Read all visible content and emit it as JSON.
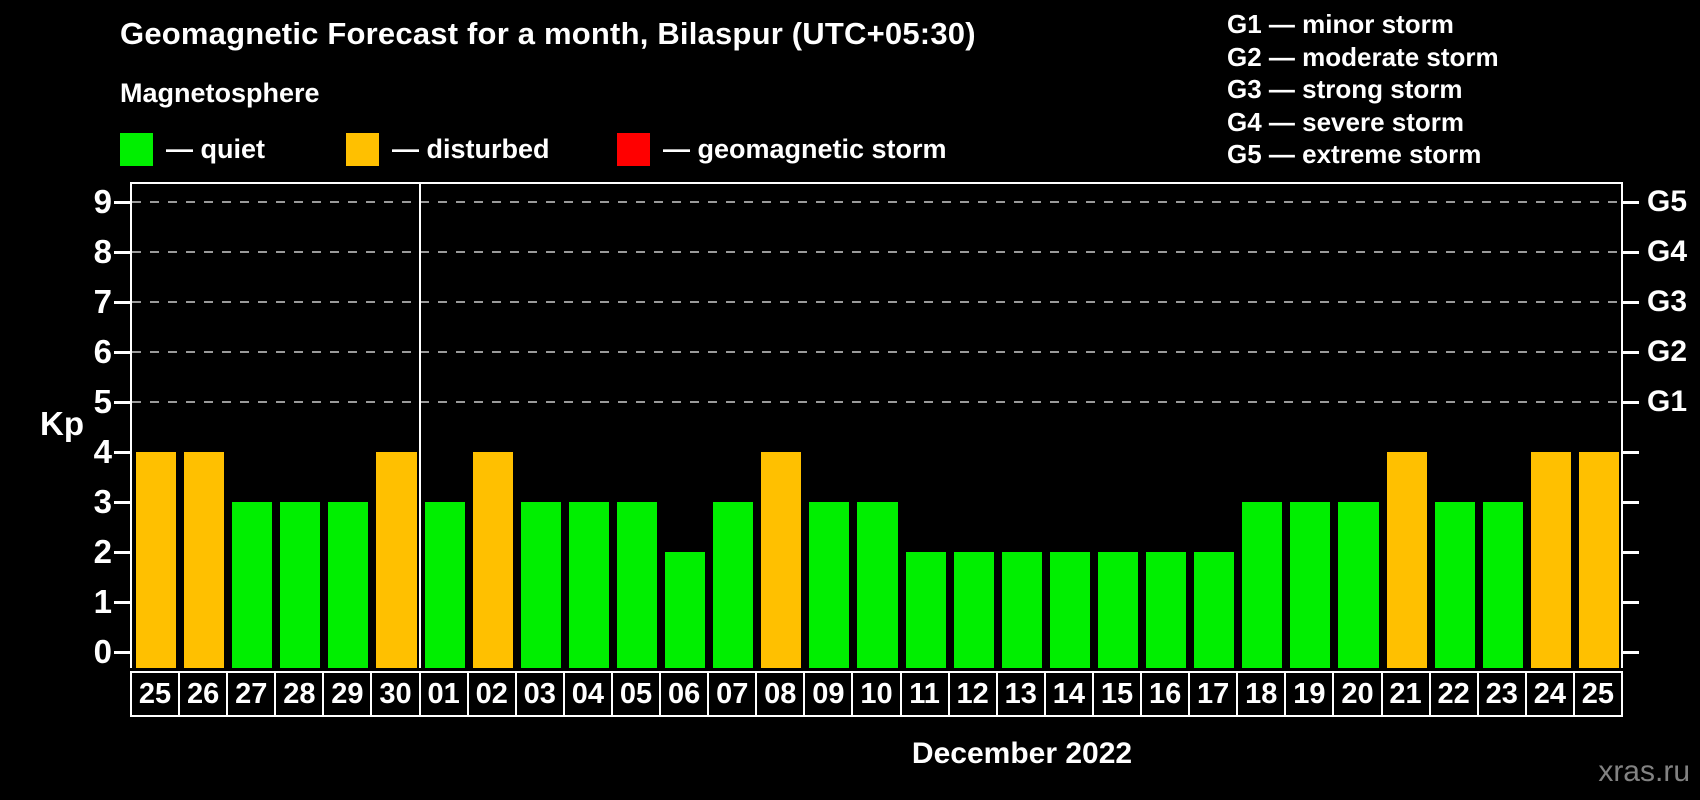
{
  "title": "Geomagnetic Forecast for a month, Bilaspur (UTC+05:30)",
  "subtitle": "Magnetosphere",
  "legend": {
    "items": [
      {
        "name": "quiet",
        "label": "— quiet",
        "color": "#00ef00"
      },
      {
        "name": "disturbed",
        "label": "— disturbed",
        "color": "#ffc000"
      },
      {
        "name": "storm",
        "label": "— geomagnetic storm",
        "color": "#ff0000"
      }
    ]
  },
  "storm_scale": [
    "G1 — minor storm",
    "G2 — moderate storm",
    "G3 — strong storm",
    "G4 — severe storm",
    "G5 — extreme storm"
  ],
  "axis": {
    "y_label": "Kp",
    "y_ticks": [
      "0",
      "1",
      "2",
      "3",
      "4",
      "5",
      "6",
      "7",
      "8",
      "9"
    ]
  },
  "month_label": "December 2022",
  "watermark": "xras.ru",
  "chart_data": {
    "type": "bar",
    "title": "Geomagnetic Forecast for a month, Bilaspur (UTC+05:30)",
    "xlabel": "December 2022",
    "ylabel": "Kp",
    "ylim": [
      0,
      9.4
    ],
    "grid": "dashed horizontal at Kp 5-9",
    "legend_position": "top-left",
    "categories": [
      "25",
      "26",
      "27",
      "28",
      "29",
      "30",
      "01",
      "02",
      "03",
      "04",
      "05",
      "06",
      "07",
      "08",
      "09",
      "10",
      "11",
      "12",
      "13",
      "14",
      "15",
      "16",
      "17",
      "18",
      "19",
      "20",
      "21",
      "22",
      "23",
      "24",
      "25"
    ],
    "values": [
      4,
      4,
      3,
      3,
      3,
      4,
      3,
      4,
      3,
      3,
      3,
      2,
      3,
      4,
      3,
      3,
      2,
      2,
      2,
      2,
      2,
      2,
      2,
      3,
      3,
      3,
      4,
      3,
      3,
      4,
      4
    ],
    "statuses": [
      "disturbed",
      "disturbed",
      "quiet",
      "quiet",
      "quiet",
      "disturbed",
      "quiet",
      "disturbed",
      "quiet",
      "quiet",
      "quiet",
      "quiet",
      "quiet",
      "disturbed",
      "quiet",
      "quiet",
      "quiet",
      "quiet",
      "quiet",
      "quiet",
      "quiet",
      "quiet",
      "quiet",
      "quiet",
      "quiet",
      "quiet",
      "disturbed",
      "quiet",
      "quiet",
      "disturbed",
      "disturbed"
    ],
    "status_colors": {
      "quiet": "#00ef00",
      "disturbed": "#ffc000",
      "storm": "#ff0000"
    },
    "right_axis_labels": [
      {
        "kp": 5,
        "label": "G1"
      },
      {
        "kp": 6,
        "label": "G2"
      },
      {
        "kp": 7,
        "label": "G3"
      },
      {
        "kp": 8,
        "label": "G4"
      },
      {
        "kp": 9,
        "label": "G5"
      }
    ],
    "gridline_kp": [
      5,
      6,
      7,
      8,
      9
    ],
    "month_divider_after_index": 5
  }
}
